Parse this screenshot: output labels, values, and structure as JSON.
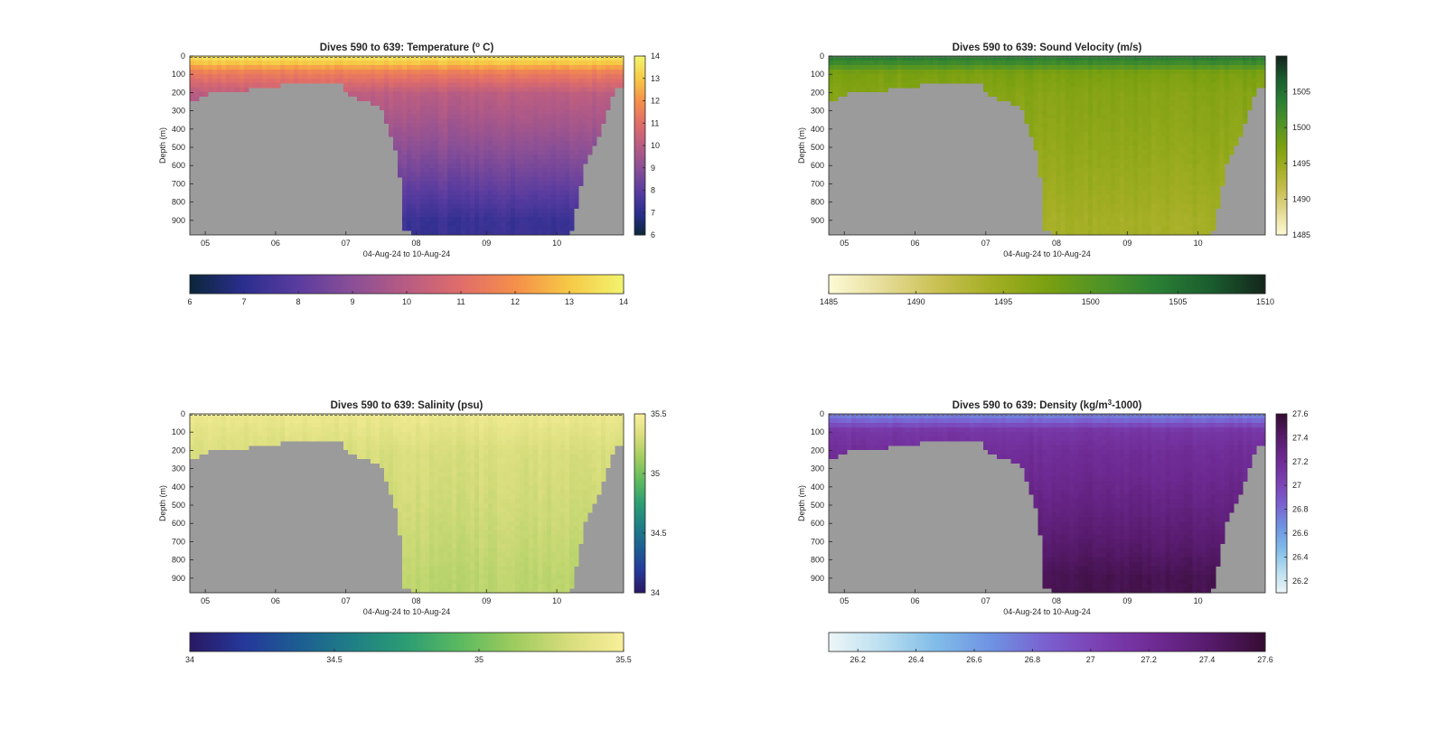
{
  "chart_data": [
    {
      "type": "heatmap",
      "title": "Dives 590 to 639: Temperature (",
      "title_sup": "o",
      "title_after": " C)",
      "xlabel": "04-Aug-24 to 10-Aug-24",
      "ylabel": "Depth (m)",
      "x_ticks": [
        "05",
        "06",
        "07",
        "08",
        "09",
        "10"
      ],
      "y_ticks": [
        "0",
        "100",
        "200",
        "300",
        "400",
        "500",
        "600",
        "700",
        "800",
        "900"
      ],
      "y_range": [
        0,
        980
      ],
      "x_range": [
        4.78,
        10.95
      ],
      "colorbar_range": [
        6,
        14
      ],
      "colorbar_ticks": [
        "6",
        "7",
        "8",
        "9",
        "10",
        "11",
        "12",
        "13",
        "14"
      ],
      "horizontal_colorbar_ticks": [
        "6",
        "7",
        "8",
        "9",
        "10",
        "11",
        "12",
        "13",
        "14"
      ],
      "colormap": [
        "#0b2639",
        "#2b2e8f",
        "#5a3c9f",
        "#8a4f96",
        "#b85c83",
        "#e06d6a",
        "#f58f4a",
        "#f6c945",
        "#f2f46f"
      ],
      "surface_value": 13.4,
      "mix_value": 11.5,
      "body_top": 10.3,
      "body_bottom": 7.3,
      "depth_decay": 900
    },
    {
      "type": "heatmap",
      "title": "Dives 590 to 639: Sound Velocity (m/s)",
      "xlabel": "04-Aug-24 to 10-Aug-24",
      "ylabel": "Depth (m)",
      "x_ticks": [
        "05",
        "06",
        "07",
        "08",
        "09",
        "10"
      ],
      "y_ticks": [
        "0",
        "100",
        "200",
        "300",
        "400",
        "500",
        "600",
        "700",
        "800",
        "900"
      ],
      "y_range": [
        0,
        980
      ],
      "x_range": [
        4.78,
        10.95
      ],
      "colorbar_range": [
        1485,
        1510
      ],
      "colorbar_ticks": [
        "1485",
        "1490",
        "1495",
        "1500",
        "1505"
      ],
      "horizontal_colorbar_ticks": [
        "1485",
        "1490",
        "1495",
        "1500",
        "1505",
        "1510"
      ],
      "colormap": [
        "#fdfbd6",
        "#e6dc98",
        "#c9c052",
        "#a3ae23",
        "#7aa010",
        "#4f9326",
        "#2a7f34",
        "#1a5d2e",
        "#14251c"
      ],
      "surface_value": 1503.5,
      "mix_value": 1497.5,
      "body_top": 1496.8,
      "body_bottom": 1494.2,
      "depth_decay": 900
    },
    {
      "type": "heatmap",
      "title": "Dives 590 to 639: Salinity (psu)",
      "xlabel": "04-Aug-24 to 10-Aug-24",
      "ylabel": "Depth (m)",
      "x_ticks": [
        "05",
        "06",
        "07",
        "08",
        "09",
        "10"
      ],
      "y_ticks": [
        "0",
        "100",
        "200",
        "300",
        "400",
        "500",
        "600",
        "700",
        "800",
        "900"
      ],
      "y_range": [
        0,
        980
      ],
      "x_range": [
        4.78,
        10.95
      ],
      "colorbar_range": [
        34,
        35.5
      ],
      "colorbar_ticks": [
        "34",
        "34.5",
        "35",
        "35.5"
      ],
      "horizontal_colorbar_ticks": [
        "34",
        "34.5",
        "35",
        "35.5"
      ],
      "colormap": [
        "#2a1862",
        "#25389a",
        "#1c5d93",
        "#1f7f85",
        "#2c9d73",
        "#5cba5f",
        "#9fcc5e",
        "#d8dd7c",
        "#f9ef9b"
      ],
      "surface_value": 35.42,
      "mix_value": 35.38,
      "body_top": 35.33,
      "body_bottom": 35.22,
      "depth_decay": 900
    },
    {
      "type": "heatmap",
      "title": "Dives 590 to 639: Density (kg/m",
      "title_sup": "3",
      "title_after": "-1000)",
      "xlabel": "04-Aug-24 to 10-Aug-24",
      "ylabel": "Depth (m)",
      "x_ticks": [
        "05",
        "06",
        "07",
        "08",
        "09",
        "10"
      ],
      "y_ticks": [
        "0",
        "100",
        "200",
        "300",
        "400",
        "500",
        "600",
        "700",
        "800",
        "900"
      ],
      "y_range": [
        0,
        980
      ],
      "x_range": [
        4.78,
        10.95
      ],
      "colorbar_range": [
        26.1,
        27.6
      ],
      "colorbar_ticks": [
        "26.2",
        "26.4",
        "26.6",
        "26.8",
        "27",
        "27.2",
        "27.4",
        "27.6"
      ],
      "horizontal_colorbar_ticks": [
        "26.2",
        "26.4",
        "26.6",
        "26.8",
        "27",
        "27.2",
        "27.4",
        "27.6"
      ],
      "colormap": [
        "#eef6f7",
        "#b8def0",
        "#7fbbe8",
        "#6f92e2",
        "#7a5fd0",
        "#7b3fb1",
        "#6e2a93",
        "#561a6b",
        "#340c31"
      ],
      "surface_value": 26.75,
      "mix_value": 27.12,
      "body_top": 27.17,
      "body_bottom": 27.5,
      "depth_decay": 900
    }
  ],
  "bathymetry": {
    "x": [
      4.78,
      4.9,
      5.0,
      5.05,
      5.2,
      5.5,
      5.55,
      5.7,
      6.2,
      6.35,
      6.9,
      6.95,
      7.0,
      7.2,
      7.4,
      7.5,
      7.7,
      7.78,
      7.8,
      8.0,
      9.0,
      9.6,
      9.7,
      9.75,
      9.9,
      10.0,
      10.2,
      10.4,
      10.6,
      10.7,
      10.8,
      10.95
    ],
    "depth": [
      260,
      230,
      210,
      205,
      205,
      200,
      190,
      175,
      155,
      155,
      155,
      160,
      210,
      240,
      260,
      290,
      500,
      700,
      940,
      985,
      985,
      985,
      970,
      985,
      985,
      985,
      980,
      600,
      450,
      320,
      200,
      150
    ]
  },
  "colors": {
    "land": "#9b9b9b",
    "axis": "#262626",
    "surface_dash": "#6a6a6a"
  }
}
